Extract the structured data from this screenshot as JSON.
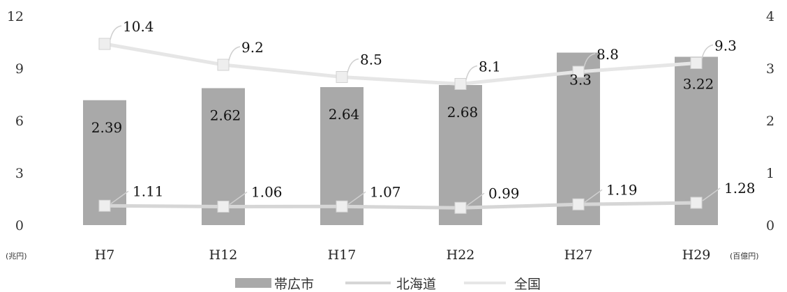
{
  "chart_data": {
    "type": "bar",
    "categories": [
      "H7",
      "H12",
      "H17",
      "H22",
      "H27",
      "H29"
    ],
    "series": [
      {
        "name": "帯広市",
        "type": "bar",
        "axis": "right",
        "values": [
          2.39,
          2.62,
          2.64,
          2.68,
          3.3,
          3.22
        ],
        "labels": [
          "2.39",
          "2.62",
          "2.64",
          "2.68",
          "3.3",
          "3.22"
        ],
        "color": "#a9a9a9"
      },
      {
        "name": "北海道",
        "type": "line",
        "axis": "left",
        "values": [
          1.11,
          1.06,
          1.07,
          0.99,
          1.19,
          1.28
        ],
        "labels": [
          "1.11",
          "1.06",
          "1.07",
          "0.99",
          "1.19",
          "1.28"
        ],
        "color": "#d6d6d6"
      },
      {
        "name": "全国",
        "type": "line",
        "axis": "left",
        "values": [
          10.4,
          9.2,
          8.5,
          8.1,
          8.8,
          9.3
        ],
        "labels": [
          "10.4",
          "9.2",
          "8.5",
          "8.1",
          "8.8",
          "9.3"
        ],
        "color": "#e6e6e6"
      }
    ],
    "y_left": {
      "unit": "(兆円)",
      "ticks": [
        "0",
        "3",
        "6",
        "9",
        "12"
      ],
      "range": [
        0,
        12
      ]
    },
    "y_right": {
      "unit": "(百億円)",
      "ticks": [
        "0",
        "1",
        "2",
        "3",
        "4"
      ],
      "range": [
        0,
        4
      ]
    },
    "grid": false,
    "legend_position": "bottom-center"
  }
}
